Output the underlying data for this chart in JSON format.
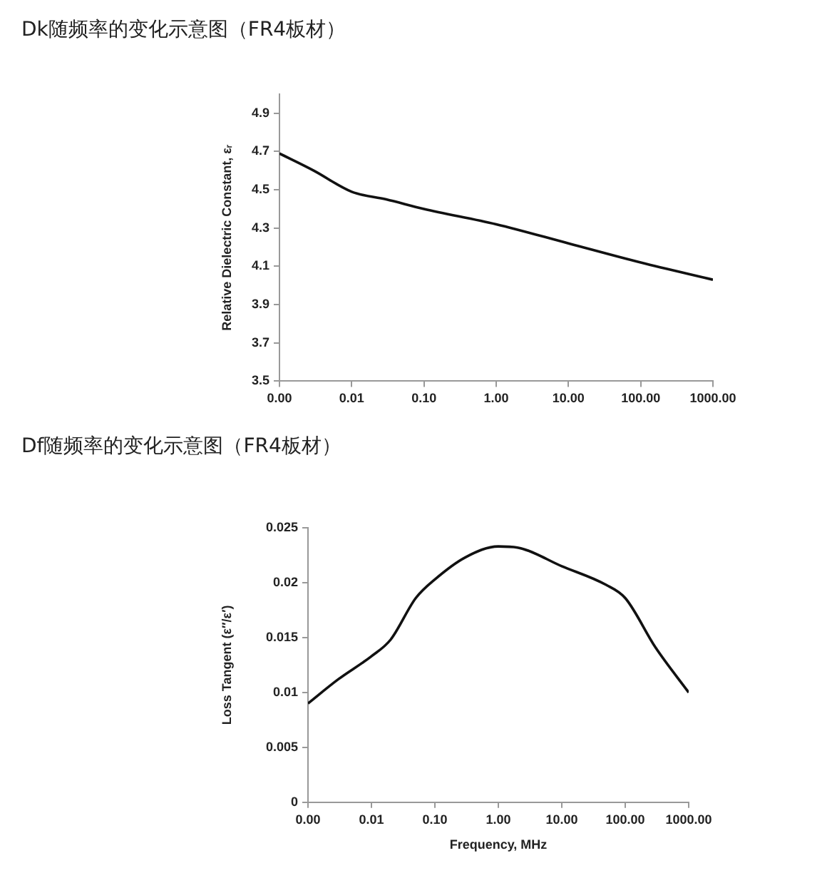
{
  "chart_data": [
    {
      "type": "line",
      "title": "Dk随频率的变化示意图（FR4板材）",
      "ylabel": "Relative Dielectric Constant, εᵣ",
      "log": "x",
      "xlim": [
        0.001,
        1000
      ],
      "xticks": [
        {
          "value": 0.001,
          "label": "0.00"
        },
        {
          "value": 0.01,
          "label": "0.01"
        },
        {
          "value": 0.1,
          "label": "0.10"
        },
        {
          "value": 1,
          "label": "1.00"
        },
        {
          "value": 10,
          "label": "10.00"
        },
        {
          "value": 100,
          "label": "100.00"
        },
        {
          "value": 1000,
          "label": "1000.00"
        }
      ],
      "ylim": [
        3.5,
        5.0
      ],
      "yticks": [
        3.5,
        3.7,
        3.9,
        4.1,
        4.3,
        4.5,
        4.7,
        4.9
      ],
      "grid": false,
      "legend": false,
      "marker": "none",
      "line_style": "solid",
      "series": [
        {
          "color": "#111111",
          "x": [
            0.001,
            0.003,
            0.01,
            0.03,
            0.1,
            1,
            10,
            100,
            1000
          ],
          "values": [
            4.69,
            4.6,
            4.49,
            4.45,
            4.4,
            4.32,
            4.22,
            4.12,
            4.03
          ]
        }
      ]
    },
    {
      "type": "line",
      "title": "Df随频率的变化示意图（FR4板材）",
      "xlabel": "Frequency, MHz",
      "ylabel": "Loss Tangent (ε″/ε′)",
      "log": "x",
      "xlim": [
        0.001,
        1000
      ],
      "xticks": [
        {
          "value": 0.001,
          "label": "0.00"
        },
        {
          "value": 0.01,
          "label": "0.01"
        },
        {
          "value": 0.1,
          "label": "0.10"
        },
        {
          "value": 1,
          "label": "1.00"
        },
        {
          "value": 10,
          "label": "10.00"
        },
        {
          "value": 100,
          "label": "100.00"
        },
        {
          "value": 1000,
          "label": "1000.00"
        }
      ],
      "ylim": [
        0,
        0.025
      ],
      "yticks": [
        0,
        0.005,
        {
          "value": 0.01,
          "label": "0.01"
        },
        0.015,
        0.02,
        0.025
      ],
      "grid": false,
      "legend": false,
      "marker": "none",
      "line_style": "solid",
      "series": [
        {
          "color": "#111111",
          "x": [
            0.001,
            0.003,
            0.01,
            0.02,
            0.05,
            0.1,
            0.3,
            1,
            2,
            10,
            50,
            100,
            300,
            1000
          ],
          "values": [
            0.009,
            0.0112,
            0.0133,
            0.0148,
            0.0186,
            0.0203,
            0.0223,
            0.0233,
            0.0232,
            0.0215,
            0.0198,
            0.0186,
            0.0141,
            0.01
          ]
        }
      ]
    }
  ]
}
